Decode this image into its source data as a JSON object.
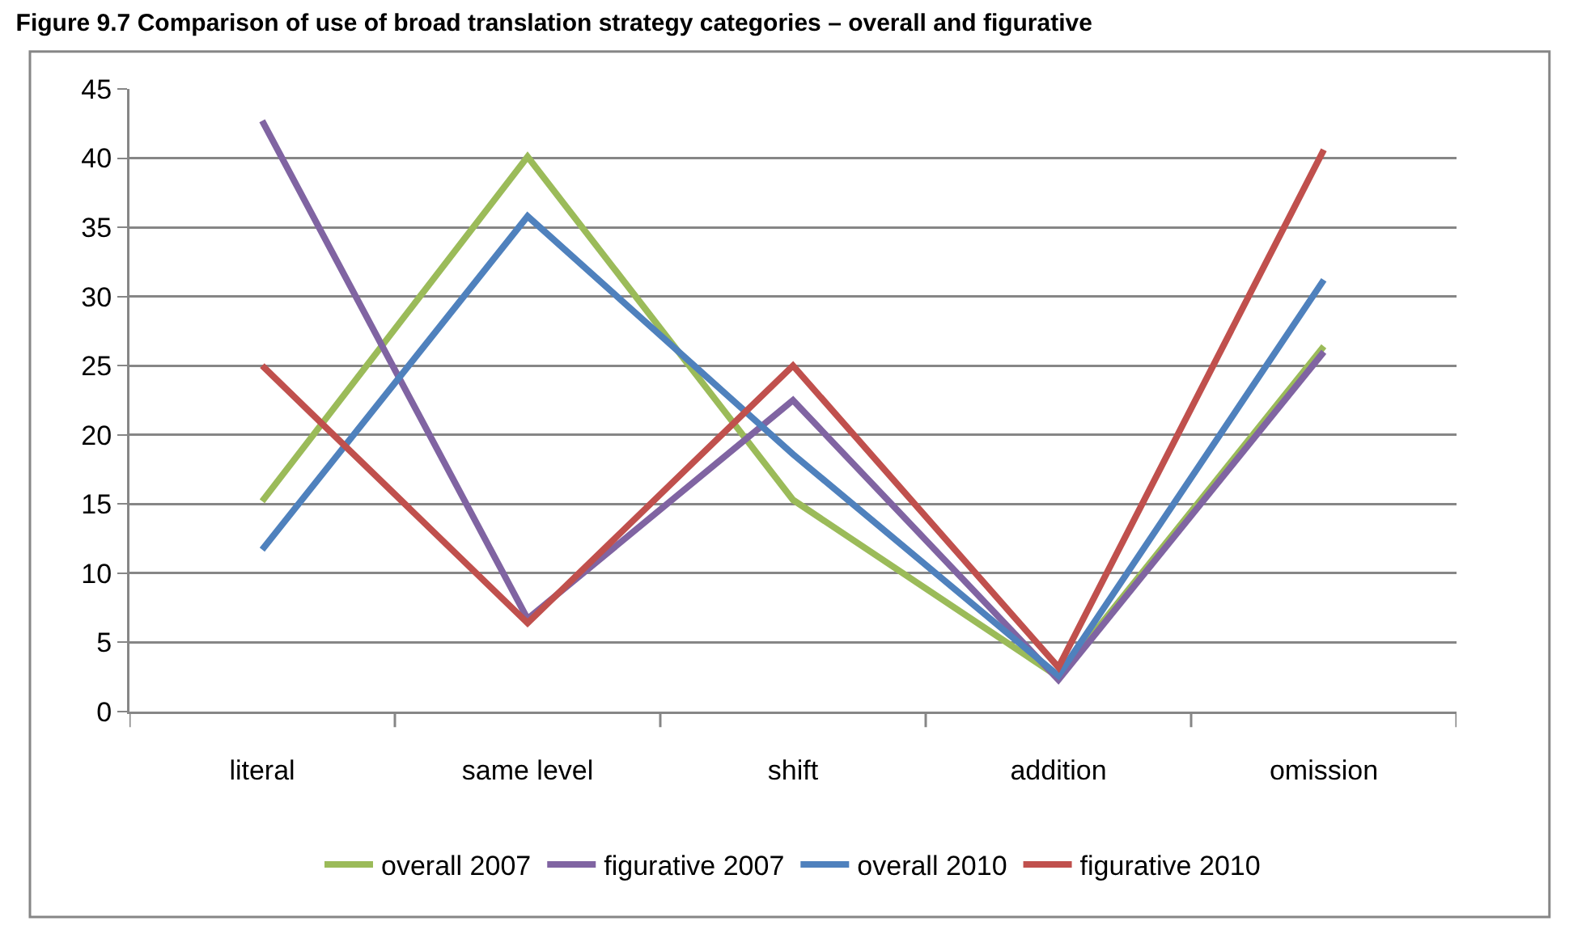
{
  "chart_data": {
    "type": "line",
    "title": "Figure 9.7 Comparison of use of broad translation strategy categories – overall and figurative",
    "categories": [
      "literal",
      "same level",
      "shift",
      "addition",
      "omission"
    ],
    "series": [
      {
        "name": "overall 2007",
        "color": "#9bbb59",
        "values": [
          15.2,
          40.1,
          15.3,
          2.5,
          26.4
        ]
      },
      {
        "name": "figurative 2007",
        "color": "#8064a2",
        "values": [
          42.7,
          6.7,
          22.5,
          2.3,
          26.0
        ]
      },
      {
        "name": "overall 2010",
        "color": "#4f81bd",
        "values": [
          11.7,
          35.8,
          18.6,
          2.6,
          31.2
        ]
      },
      {
        "name": "figurative 2010",
        "color": "#c0504d",
        "values": [
          25.0,
          6.4,
          25.0,
          3.2,
          40.6
        ]
      }
    ],
    "ylim": [
      0,
      45
    ],
    "yticks": [
      0,
      5,
      10,
      15,
      20,
      25,
      30,
      35,
      40,
      45
    ],
    "grid": "y",
    "legend": "bottom",
    "marker": "none",
    "line_style": "solid"
  }
}
